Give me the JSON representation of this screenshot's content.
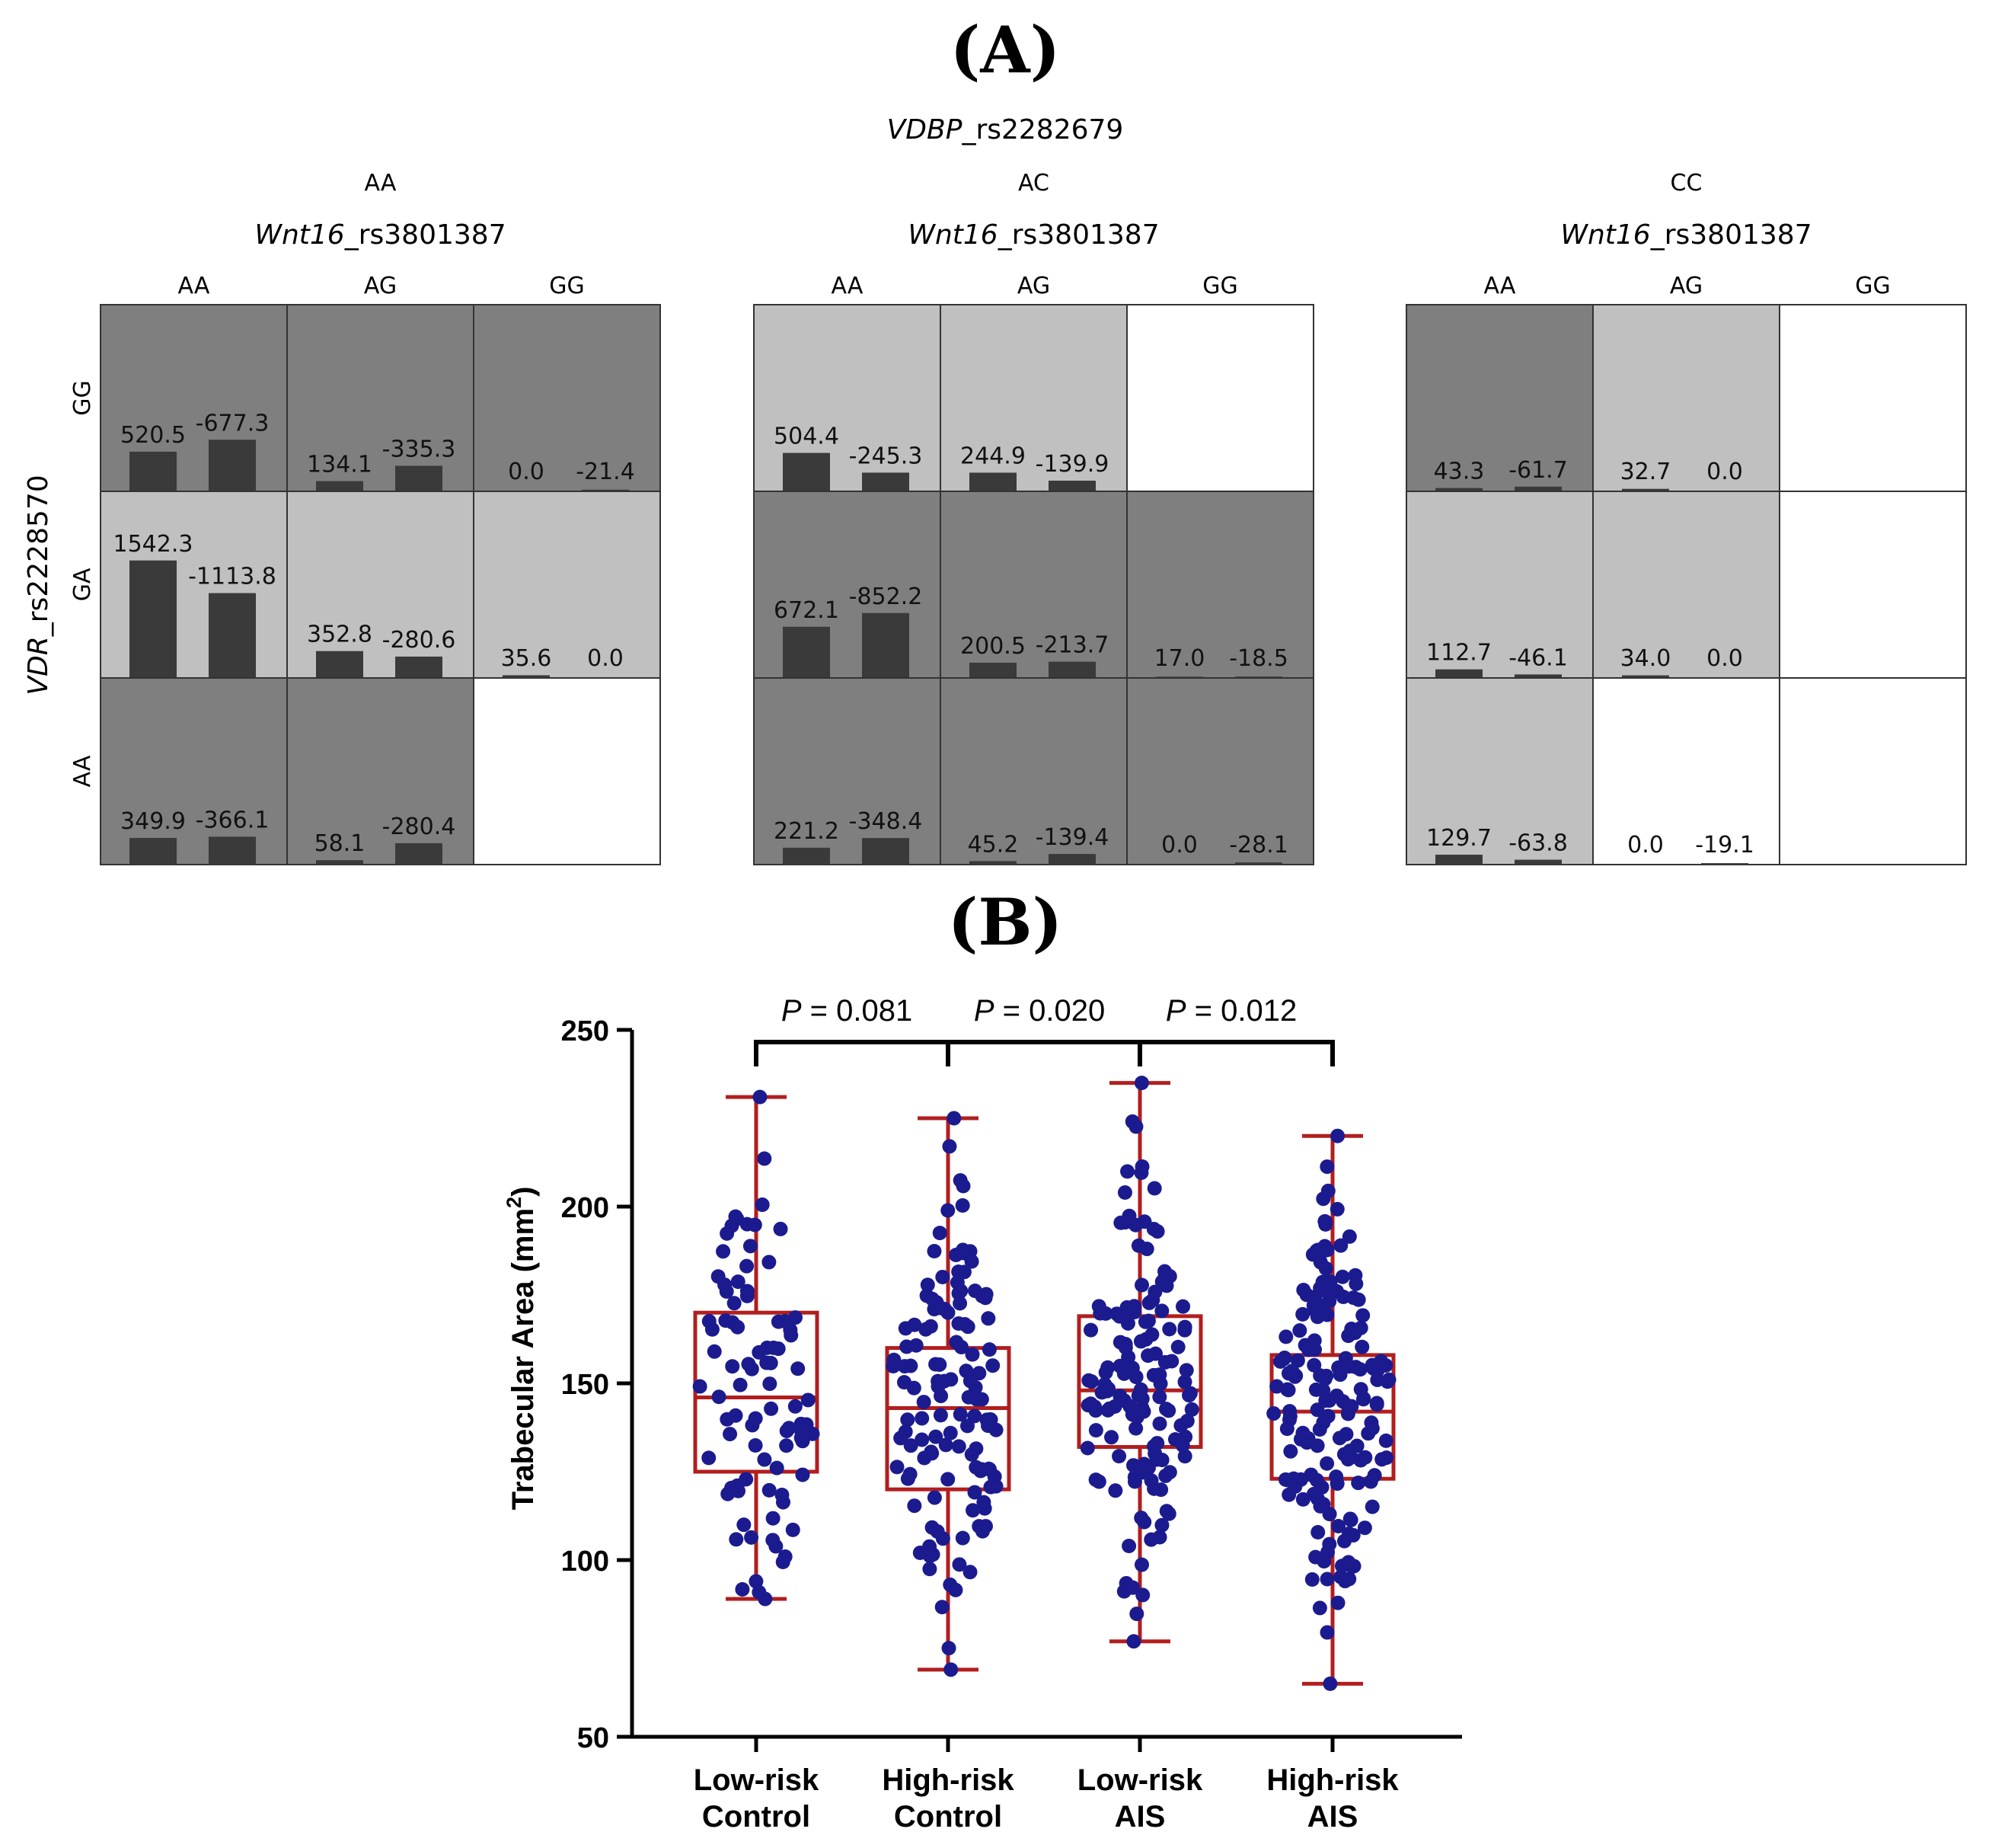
{
  "panel_a": {
    "letter_open": "(",
    "letter": "A",
    "letter_close": ")",
    "top_gene_italic": "VDBP",
    "top_gene_rest": "_rs2282679",
    "row_gene_italic": "VDR",
    "row_gene_rest": "_rs2228570",
    "col_gene_italic": "Wnt16",
    "col_gene_rest": "_rs3801387",
    "row_genotypes": [
      "GG",
      "GA",
      "AA"
    ],
    "col_genotypes": [
      "AA",
      "AG",
      "GG"
    ],
    "colors": {
      "high": "#7f7f7f",
      "low": "#c0c0c0",
      "empty": "#ffffff",
      "bar": "#3a3a3a",
      "grid": "#333333"
    }
  },
  "panel_b": {
    "letter_open": "(",
    "letter": "B",
    "letter_close": ")",
    "pvalues": [
      {
        "label": "P",
        "value": " = 0.081"
      },
      {
        "label": "P",
        "value": " = 0.020"
      },
      {
        "label": "P",
        "value": " = 0.012"
      }
    ]
  },
  "chart_data": [
    {
      "type": "bar",
      "subtype": "MDR interaction grid",
      "title": "VDBP_rs2282679",
      "row_factor": "VDR_rs2228570",
      "col_factor": "Wnt16_rs3801387",
      "blocks": [
        {
          "label": "AA",
          "cells": [
            [
              {
                "risk": "high",
                "values": [
                  520.5,
                  -677.3
                ],
                "labels": [
                  "520.5",
                  "-677.3"
                ]
              },
              {
                "risk": "high",
                "values": [
                  134.1,
                  -335.3
                ],
                "labels": [
                  "134.1",
                  "-335.3"
                ]
              },
              {
                "risk": "high",
                "values": [
                  0.0,
                  -21.4
                ],
                "labels": [
                  "0.0",
                  "-21.4"
                ]
              }
            ],
            [
              {
                "risk": "low",
                "values": [
                  1542.3,
                  -1113.8
                ],
                "labels": [
                  "1542.3",
                  "-1113.8"
                ]
              },
              {
                "risk": "low",
                "values": [
                  352.8,
                  -280.6
                ],
                "labels": [
                  "352.8",
                  "-280.6"
                ]
              },
              {
                "risk": "low",
                "values": [
                  35.6,
                  0.0
                ],
                "labels": [
                  "35.6",
                  "0.0"
                ]
              }
            ],
            [
              {
                "risk": "high",
                "values": [
                  349.9,
                  -366.1
                ],
                "labels": [
                  "349.9",
                  "-366.1"
                ]
              },
              {
                "risk": "high",
                "values": [
                  58.1,
                  -280.4
                ],
                "labels": [
                  "58.1",
                  "-280.4"
                ]
              },
              {
                "risk": "empty",
                "values": [],
                "labels": []
              }
            ]
          ]
        },
        {
          "label": "AC",
          "cells": [
            [
              {
                "risk": "low",
                "values": [
                  504.4,
                  -245.3
                ],
                "labels": [
                  "504.4",
                  "-245.3"
                ]
              },
              {
                "risk": "low",
                "values": [
                  244.9,
                  -139.9
                ],
                "labels": [
                  "244.9",
                  "-139.9"
                ]
              },
              {
                "risk": "empty",
                "values": [],
                "labels": []
              }
            ],
            [
              {
                "risk": "high",
                "values": [
                  672.1,
                  -852.2
                ],
                "labels": [
                  "672.1",
                  "-852.2"
                ]
              },
              {
                "risk": "high",
                "values": [
                  200.5,
                  -213.7
                ],
                "labels": [
                  "200.5",
                  "-213.7"
                ]
              },
              {
                "risk": "high",
                "values": [
                  17.0,
                  -18.5
                ],
                "labels": [
                  "17.0",
                  "-18.5"
                ]
              }
            ],
            [
              {
                "risk": "high",
                "values": [
                  221.2,
                  -348.4
                ],
                "labels": [
                  "221.2",
                  "-348.4"
                ]
              },
              {
                "risk": "high",
                "values": [
                  45.2,
                  -139.4
                ],
                "labels": [
                  "45.2",
                  "-139.4"
                ]
              },
              {
                "risk": "high",
                "values": [
                  0.0,
                  -28.1
                ],
                "labels": [
                  "0.0",
                  "-28.1"
                ]
              }
            ]
          ]
        },
        {
          "label": "CC",
          "cells": [
            [
              {
                "risk": "high",
                "values": [
                  43.3,
                  -61.7
                ],
                "labels": [
                  "43.3",
                  "-61.7"
                ]
              },
              {
                "risk": "low",
                "values": [
                  32.7,
                  0.0
                ],
                "labels": [
                  "32.7",
                  "0.0"
                ]
              },
              {
                "risk": "empty",
                "values": [],
                "labels": []
              }
            ],
            [
              {
                "risk": "low",
                "values": [
                  112.7,
                  -46.1
                ],
                "labels": [
                  "112.7",
                  "-46.1"
                ]
              },
              {
                "risk": "low",
                "values": [
                  34.0,
                  0.0
                ],
                "labels": [
                  "34.0",
                  "0.0"
                ]
              },
              {
                "risk": "empty",
                "values": [],
                "labels": []
              }
            ],
            [
              {
                "risk": "low",
                "values": [
                  129.7,
                  -63.8
                ],
                "labels": [
                  "129.7",
                  "-63.8"
                ]
              },
              {
                "risk": "empty",
                "values": [
                  0.0,
                  -19.1
                ],
                "labels": [
                  "0.0",
                  "-19.1"
                ]
              },
              {
                "risk": "empty",
                "values": [],
                "labels": []
              }
            ]
          ]
        }
      ]
    },
    {
      "type": "scatter",
      "subtype": "box-and-whisker with dots",
      "ylabel": "Trabecular Area (mm",
      "ylabel_sup": "2",
      "ylabel_close": ")",
      "ylim": [
        50,
        250
      ],
      "yticks": [
        "50",
        "100",
        "150",
        "200",
        "250"
      ],
      "categories": [
        {
          "line1": "Low-risk",
          "line2": "Control"
        },
        {
          "line1": "High-risk",
          "line2": "Control"
        },
        {
          "line1": "Low-risk",
          "line2": "AIS"
        },
        {
          "line1": "High-risk",
          "line2": "AIS"
        }
      ],
      "boxes": [
        {
          "min": 89,
          "q1": 125,
          "median": 146,
          "q3": 170,
          "max": 231,
          "n": 90
        },
        {
          "min": 69,
          "q1": 120,
          "median": 143,
          "q3": 160,
          "max": 225,
          "n": 130
        },
        {
          "min": 77,
          "q1": 132,
          "median": 148,
          "q3": 169,
          "max": 235,
          "n": 145
        },
        {
          "min": 65,
          "q1": 123,
          "median": 142,
          "q3": 158,
          "max": 220,
          "n": 175
        }
      ],
      "colors": {
        "box": "#b21e1e",
        "dots": "#1b1b8f"
      }
    }
  ]
}
